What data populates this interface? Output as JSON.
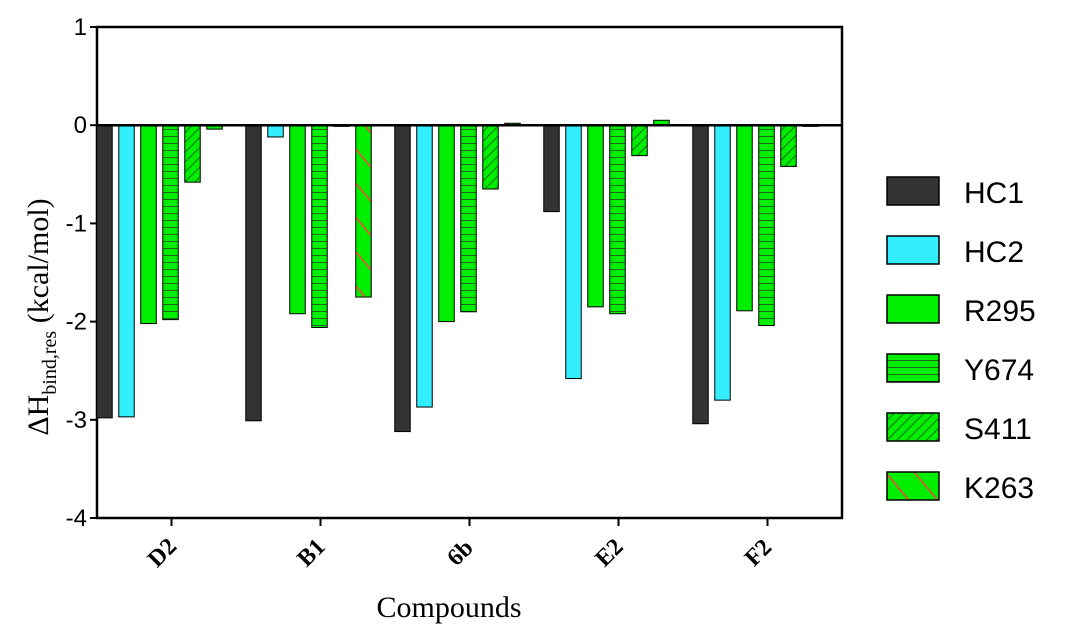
{
  "chart_data": {
    "type": "bar",
    "categories": [
      "D2",
      "B1",
      "6b",
      "E2",
      "F2"
    ],
    "series": [
      {
        "name": "HC1",
        "color": "#333333",
        "pattern": "solid",
        "values": [
          -2.98,
          -3.01,
          -3.12,
          -0.88,
          -3.04
        ]
      },
      {
        "name": "HC2",
        "color": "#33eeff",
        "pattern": "solid",
        "values": [
          -2.97,
          -0.12,
          -2.87,
          -2.58,
          -2.8
        ]
      },
      {
        "name": "R295",
        "color": "#00ee00",
        "pattern": "solid",
        "values": [
          -2.02,
          -1.92,
          -2.0,
          -1.85,
          -1.89
        ]
      },
      {
        "name": "Y674",
        "color": "#00ee00",
        "pattern": "horizontal-lines",
        "values": [
          -1.98,
          -2.06,
          -1.9,
          -1.92,
          -2.04
        ]
      },
      {
        "name": "S411",
        "color": "#00ee00",
        "pattern": "diagonal-lines",
        "values": [
          -0.58,
          0.0,
          -0.65,
          -0.31,
          -0.42
        ]
      },
      {
        "name": "K263",
        "color": "#00ee00",
        "pattern": "red-diagonal-lines",
        "values": [
          -0.04,
          -1.75,
          0.02,
          0.05,
          0.0
        ]
      }
    ],
    "xlabel": "Compounds",
    "ylabel_main": "ΔH",
    "ylabel_sub": "bind,res",
    "ylabel_units": " (kcal/mol)",
    "ylim": [
      -4,
      1
    ],
    "yticks": [
      "1",
      "0",
      "-1",
      "-2",
      "-3",
      "-4"
    ],
    "grid": false,
    "legend_position": "right"
  }
}
